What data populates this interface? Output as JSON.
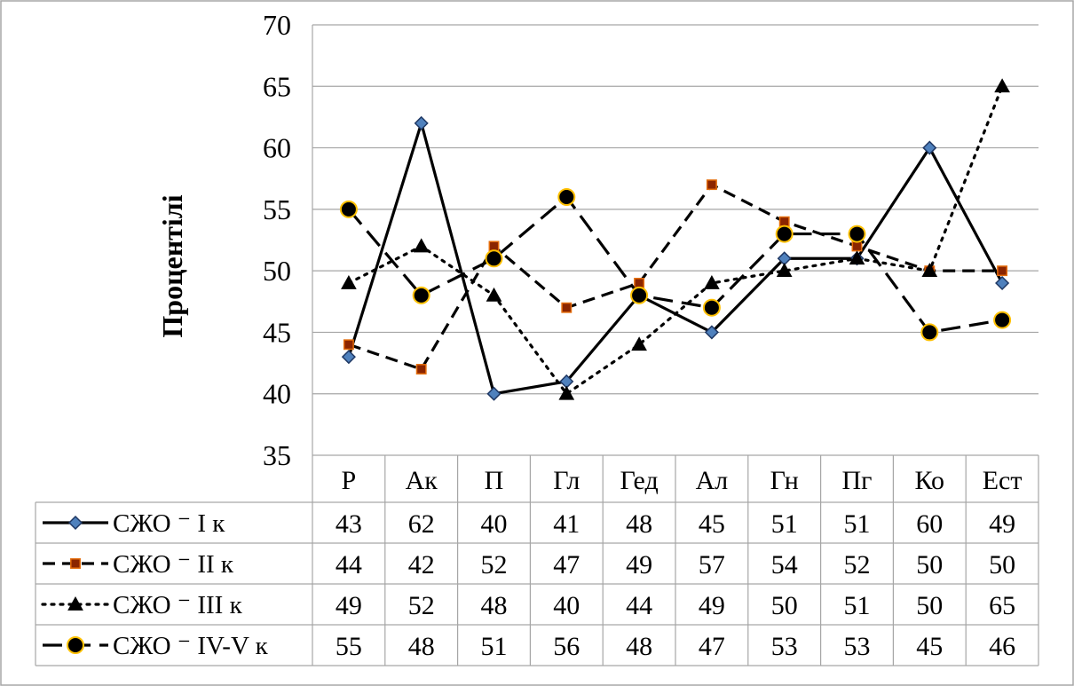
{
  "chart_data": {
    "type": "line",
    "title": "",
    "xlabel": "",
    "ylabel": "Процентілі",
    "ylim": [
      35,
      70
    ],
    "yticks": [
      35,
      40,
      45,
      50,
      55,
      60,
      65,
      70
    ],
    "grid": true,
    "legend_placement": "bottom data table",
    "categories": [
      "Р",
      "Ак",
      "П",
      "Гл",
      "Гед",
      "Ал",
      "Гн",
      "Пг",
      "Ко",
      "Ест"
    ],
    "series": [
      {
        "name": "СЖО ⁻ І к",
        "values": [
          43,
          62,
          40,
          41,
          48,
          45,
          51,
          51,
          60,
          49
        ],
        "line": "solid",
        "marker": "diamond",
        "marker_fill": "#4f81bd",
        "marker_stroke": "#1f3864"
      },
      {
        "name": "СЖО ⁻ ІІ к",
        "values": [
          44,
          42,
          52,
          47,
          49,
          57,
          54,
          52,
          50,
          50
        ],
        "line": "dash",
        "marker": "square",
        "marker_fill": "#8b2500",
        "marker_stroke": "#e46c0a"
      },
      {
        "name": "СЖО ⁻ ІІІ к",
        "values": [
          49,
          52,
          48,
          40,
          44,
          49,
          50,
          51,
          50,
          65
        ],
        "line": "dot",
        "marker": "triangle",
        "marker_fill": "#000000",
        "marker_stroke": "#000000"
      },
      {
        "name": "СЖО ⁻ IV-V к",
        "values": [
          55,
          48,
          51,
          56,
          48,
          47,
          53,
          53,
          45,
          46
        ],
        "line": "longdash",
        "marker": "circle",
        "marker_fill": "#000000",
        "marker_stroke": "#ffc000"
      }
    ]
  }
}
